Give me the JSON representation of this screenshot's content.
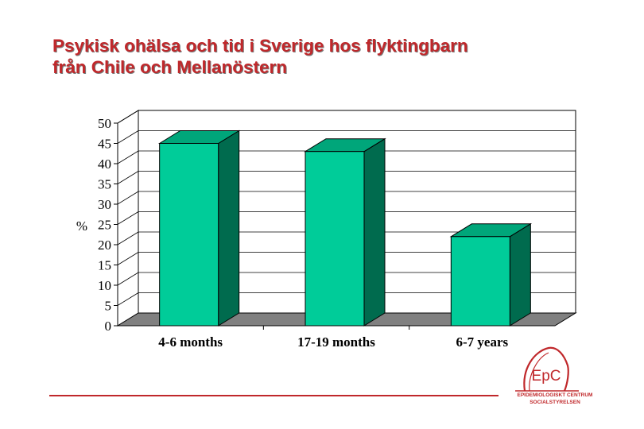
{
  "header": {
    "title_line1": "Psykisk ohälsa och tid i Sverige hos flyktingbarn",
    "title_line2": "från Chile och Mellanöstern"
  },
  "chart_data": {
    "type": "bar",
    "title": "Psykisk ohälsa och tid i Sverige hos flyktingbarn från Chile och Mellanöstern",
    "categories": [
      "4-6 months",
      "17-19 months",
      "6-7 years"
    ],
    "values": [
      45,
      43,
      22
    ],
    "xlabel": "",
    "ylabel": "%",
    "ylim": [
      0,
      50
    ],
    "yticks": [
      "0",
      "5",
      "10",
      "15",
      "20",
      "25",
      "30",
      "35",
      "40",
      "45",
      "50"
    ],
    "grid": true,
    "style": "3d"
  },
  "logo": {
    "text": "EpC",
    "org_line1": "EPIDEMIOLOGISKT CENTRUM",
    "org_line2": "SOCIALSTYRELSEN"
  },
  "colors": {
    "title": "#c0282b",
    "bar_front": "#00cc99",
    "bar_top": "#00a67a",
    "bar_side": "#006b4e",
    "floor": "#808080",
    "accent_line": "#c0282b"
  }
}
